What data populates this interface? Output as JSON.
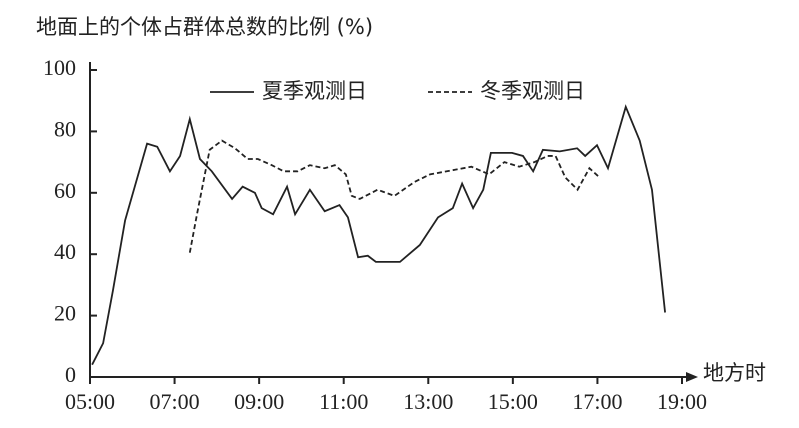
{
  "chart_data": {
    "type": "line",
    "title": "地面上的个体占群体总数的比例 (%)",
    "x_label": "地方时",
    "xlim": [
      5,
      19
    ],
    "xticks": [
      {
        "value": 5,
        "label": "05:00"
      },
      {
        "value": 7,
        "label": "07:00"
      },
      {
        "value": 9,
        "label": "09:00"
      },
      {
        "value": 11,
        "label": "11:00"
      },
      {
        "value": 13,
        "label": "13:00"
      },
      {
        "value": 15,
        "label": "15:00"
      },
      {
        "value": 17,
        "label": "17:00"
      },
      {
        "value": 19,
        "label": "19:00"
      }
    ],
    "ylim": [
      0,
      100
    ],
    "yticks": [
      0,
      20,
      40,
      60,
      80,
      100
    ],
    "series": [
      {
        "name": "夏季观测日",
        "color": "#222222",
        "dash": "solid",
        "x": [
          5.05,
          5.31,
          5.54,
          5.83,
          6.35,
          6.59,
          6.89,
          7.13,
          7.36,
          7.6,
          7.88,
          8.36,
          8.61,
          8.9,
          9.06,
          9.33,
          9.66,
          9.85,
          10.2,
          10.55,
          10.9,
          11.1,
          11.34,
          11.57,
          11.76,
          12.33,
          12.8,
          13.23,
          13.58,
          13.8,
          14.06,
          14.3,
          14.48,
          14.98,
          15.24,
          15.48,
          15.71,
          16.11,
          16.52,
          16.71,
          16.99,
          17.25,
          17.67,
          18.0,
          18.29,
          18.6
        ],
        "values": [
          4,
          11,
          28,
          51,
          76,
          75,
          67,
          72,
          84,
          71,
          67,
          58,
          62,
          60,
          55,
          53,
          62,
          53,
          61,
          54,
          56,
          52,
          39,
          39.5,
          37.5,
          37.5,
          43,
          52,
          55,
          63,
          55,
          61,
          73,
          73,
          72,
          67,
          74,
          73.5,
          74.5,
          72,
          75.5,
          68,
          88,
          77,
          61,
          21
        ]
      },
      {
        "name": "冬季观测日",
        "color": "#222222",
        "dash": "dashed",
        "x": [
          7.36,
          7.53,
          7.83,
          8.12,
          8.43,
          8.73,
          8.97,
          9.3,
          9.58,
          9.91,
          10.2,
          10.55,
          10.79,
          11.05,
          11.19,
          11.38,
          11.8,
          12.2,
          12.67,
          13.04,
          13.63,
          14.02,
          14.44,
          14.8,
          15.15,
          15.51,
          15.82,
          16.01,
          16.24,
          16.53,
          16.81,
          17.05
        ],
        "values": [
          40.5,
          53,
          74,
          77,
          74.5,
          71,
          71,
          69,
          67,
          67,
          69,
          68,
          69,
          66,
          59,
          58,
          61,
          59,
          63.5,
          66,
          67.5,
          68.5,
          66,
          70,
          68.5,
          70,
          72,
          72,
          65,
          61,
          68,
          65
        ]
      }
    ]
  }
}
